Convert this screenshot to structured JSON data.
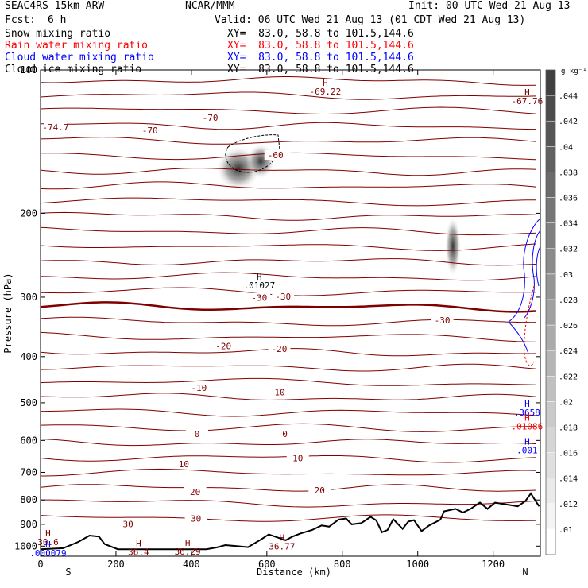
{
  "header": {
    "model": "SEAC4RS 15km ARW",
    "org": "NCAR/MMM",
    "init": "Init: 00 UTC Wed 21 Aug 13",
    "fcst_label": "Fcst:",
    "fcst_value": "6 h",
    "valid": "Valid: 06 UTC Wed 21 Aug 13 (01 CDT Wed 21 Aug 13)"
  },
  "fields": [
    {
      "name": "Snow mixing ratio",
      "xy": "XY=  83.0, 58.8 to 101.5,144.6",
      "color": "#000000"
    },
    {
      "name": "Rain water mixing ratio",
      "xy": "XY=  83.0, 58.8 to 101.5,144.6",
      "color": "#ff0000"
    },
    {
      "name": "Cloud water mixing ratio",
      "xy": "XY=  83.0, 58.8 to 101.5,144.6",
      "color": "#0000ff"
    },
    {
      "name": "Cloud ice mixing ratio",
      "xy": "XY=  83.0, 58.8 to 101.5,144.6",
      "color": "#000000"
    }
  ],
  "colors": {
    "temperature": "#800000",
    "terrain": "#000000",
    "rain": "#ff0000",
    "cloud_water": "#0000ff"
  },
  "chart_data": {
    "type": "cross-section",
    "xlabel": "Distance (km)",
    "ylabel": "Pressure (hPa)",
    "xlim": [
      0,
      1325
    ],
    "ylim": [
      1050,
      100
    ],
    "y_log": true,
    "xticks": [
      "0",
      "200",
      "400",
      "600",
      "800",
      "1000",
      "1200"
    ],
    "yticks": [
      "1000",
      "900",
      "800",
      "700",
      "600",
      "500",
      "400",
      "300",
      "200",
      "100"
    ],
    "left_end_label": "S",
    "right_end_label": "N",
    "colorbar": {
      "unit": "g kg⁻¹",
      "levels": [
        ".01",
        ".012",
        ".014",
        ".016",
        ".018",
        ".02",
        ".022",
        ".024",
        ".026",
        ".028",
        ".03",
        ".032",
        ".034",
        ".036",
        ".038",
        ".04",
        ".042",
        ".044"
      ]
    },
    "temperature_labels": [
      {
        "x": 40,
        "p": 133,
        "text": "-74.7"
      },
      {
        "x": 290,
        "p": 135,
        "text": "-70"
      },
      {
        "x": 450,
        "p": 127,
        "text": "-70"
      },
      {
        "x": 623,
        "p": 152,
        "text": "-60"
      },
      {
        "x": 1065,
        "p": 338,
        "text": "-30"
      },
      {
        "x": 580,
        "p": 303,
        "text": "-30"
      },
      {
        "x": 643,
        "p": 301,
        "text": "-30"
      },
      {
        "x": 485,
        "p": 383,
        "text": "-20"
      },
      {
        "x": 633,
        "p": 388,
        "text": "-20"
      },
      {
        "x": 420,
        "p": 469,
        "text": "-10"
      },
      {
        "x": 627,
        "p": 479,
        "text": "-10"
      },
      {
        "x": 415,
        "p": 586,
        "text": "0"
      },
      {
        "x": 648,
        "p": 585,
        "text": "0"
      },
      {
        "x": 380,
        "p": 678,
        "text": "10"
      },
      {
        "x": 682,
        "p": 658,
        "text": "10"
      },
      {
        "x": 410,
        "p": 775,
        "text": "20"
      },
      {
        "x": 740,
        "p": 769,
        "text": "20"
      },
      {
        "x": 412,
        "p": 881,
        "text": "30"
      },
      {
        "x": 232,
        "p": 905,
        "text": "30"
      }
    ],
    "extrema": [
      {
        "type": "H",
        "value": "-69.22",
        "x": 755,
        "p": 108,
        "color": "#800000"
      },
      {
        "type": "H",
        "value": "-67.76",
        "x": 1290,
        "p": 113,
        "color": "#800000"
      },
      {
        "type": "H",
        "value": ".01027",
        "x": 580,
        "p": 276,
        "color": "#000000"
      },
      {
        "type": "H",
        "value": "30.6",
        "x": 20,
        "p": 953,
        "color": "#800000"
      },
      {
        "type": "H",
        "value": "36.4",
        "x": 260,
        "p": 1000,
        "color": "#800000"
      },
      {
        "type": "H",
        "value": "36.29",
        "x": 390,
        "p": 998,
        "color": "#800000"
      },
      {
        "type": "H",
        "value": "36.77",
        "x": 640,
        "p": 975,
        "color": "#800000"
      },
      {
        "type": "H",
        "value": ".000079",
        "x": 20,
        "p": 1007,
        "color": "#0000ff"
      },
      {
        "type": "H",
        "value": ".3658",
        "x": 1290,
        "p": 510,
        "color": "#0000ff"
      },
      {
        "type": "H",
        "value": ".01086",
        "x": 1290,
        "p": 545,
        "color": "#ff0000"
      },
      {
        "type": "H",
        "value": ".001",
        "x": 1290,
        "p": 612,
        "color": "#0000ff"
      }
    ],
    "terrain": [
      [
        0,
        1015
      ],
      [
        60,
        1010
      ],
      [
        100,
        980
      ],
      [
        130,
        950
      ],
      [
        155,
        955
      ],
      [
        170,
        990
      ],
      [
        205,
        1015
      ],
      [
        300,
        1015
      ],
      [
        380,
        1015
      ],
      [
        440,
        1015
      ],
      [
        470,
        1005
      ],
      [
        490,
        995
      ],
      [
        520,
        1000
      ],
      [
        550,
        1005
      ],
      [
        585,
        968
      ],
      [
        605,
        945
      ],
      [
        630,
        960
      ],
      [
        650,
        972
      ],
      [
        668,
        955
      ],
      [
        690,
        940
      ],
      [
        720,
        925
      ],
      [
        745,
        905
      ],
      [
        765,
        910
      ],
      [
        790,
        880
      ],
      [
        810,
        875
      ],
      [
        825,
        900
      ],
      [
        850,
        895
      ],
      [
        875,
        868
      ],
      [
        890,
        883
      ],
      [
        905,
        935
      ],
      [
        920,
        925
      ],
      [
        935,
        878
      ],
      [
        960,
        920
      ],
      [
        975,
        888
      ],
      [
        990,
        882
      ],
      [
        1010,
        930
      ],
      [
        1030,
        905
      ],
      [
        1060,
        880
      ],
      [
        1070,
        845
      ],
      [
        1100,
        835
      ],
      [
        1120,
        850
      ],
      [
        1140,
        835
      ],
      [
        1165,
        810
      ],
      [
        1185,
        835
      ],
      [
        1205,
        810
      ],
      [
        1225,
        815
      ],
      [
        1245,
        820
      ],
      [
        1265,
        825
      ],
      [
        1285,
        805
      ],
      [
        1300,
        775
      ],
      [
        1315,
        810
      ],
      [
        1322,
        825
      ]
    ]
  }
}
